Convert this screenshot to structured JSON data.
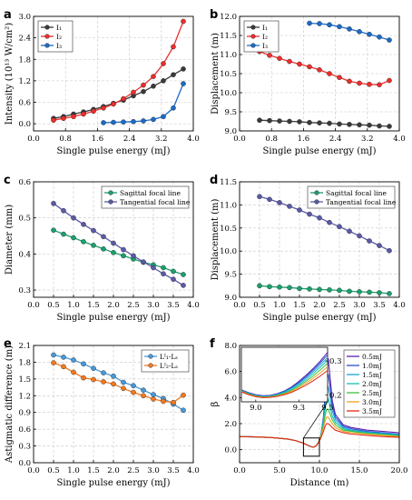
{
  "chart_data": [
    {
      "panel": "a",
      "type": "line",
      "xlabel": "Single pulse energy (mJ)",
      "ylabel": "Intensity (10¹³ W/cm²)",
      "xlim": [
        0,
        4
      ],
      "ylim": [
        -0.2,
        3.0
      ],
      "xticks": [
        0.0,
        0.8,
        1.6,
        2.4,
        3.2,
        4.0
      ],
      "yticks": [
        0.0,
        0.6,
        1.2,
        1.8,
        2.4,
        3.0
      ],
      "yfmt": 1,
      "grid": true,
      "legend": "top-left",
      "series": [
        {
          "name": "I₁",
          "color": "#3a3a3a",
          "x": [
            0.5,
            0.75,
            1.0,
            1.25,
            1.5,
            1.75,
            2.0,
            2.25,
            2.5,
            2.75,
            3.0,
            3.25,
            3.5,
            3.75
          ],
          "y": [
            0.15,
            0.2,
            0.27,
            0.33,
            0.4,
            0.48,
            0.57,
            0.66,
            0.78,
            0.9,
            1.05,
            1.2,
            1.37,
            1.53
          ]
        },
        {
          "name": "I₂",
          "color": "#e8302e",
          "x": [
            0.5,
            0.75,
            1.0,
            1.25,
            1.5,
            1.75,
            2.0,
            2.25,
            2.5,
            2.75,
            3.0,
            3.25,
            3.5,
            3.75
          ],
          "y": [
            0.1,
            0.15,
            0.2,
            0.27,
            0.35,
            0.44,
            0.55,
            0.7,
            0.88,
            1.08,
            1.32,
            1.68,
            2.15,
            2.86
          ]
        },
        {
          "name": "I₃",
          "color": "#1e6bc4",
          "x": [
            1.75,
            2.0,
            2.25,
            2.5,
            2.75,
            3.0,
            3.25,
            3.5,
            3.75
          ],
          "y": [
            0.03,
            0.04,
            0.05,
            0.06,
            0.08,
            0.12,
            0.2,
            0.44,
            1.12
          ]
        }
      ]
    },
    {
      "panel": "b",
      "type": "line",
      "xlabel": "Single pulse energy (mJ)",
      "ylabel": "Displacement (m)",
      "xlim": [
        0,
        4
      ],
      "ylim": [
        9.0,
        12.0
      ],
      "xticks": [
        0.0,
        0.8,
        1.6,
        2.4,
        3.2,
        4.0
      ],
      "yticks": [
        9.0,
        9.5,
        10.0,
        10.5,
        11.0,
        11.5,
        12.0
      ],
      "yfmt": 1,
      "grid": true,
      "legend": "top-left",
      "series": [
        {
          "name": "I₁",
          "color": "#3a3a3a",
          "x": [
            0.5,
            0.75,
            1.0,
            1.25,
            1.5,
            1.75,
            2.0,
            2.25,
            2.5,
            2.75,
            3.0,
            3.25,
            3.5,
            3.75
          ],
          "y": [
            9.28,
            9.27,
            9.26,
            9.25,
            9.24,
            9.22,
            9.21,
            9.2,
            9.18,
            9.17,
            9.16,
            9.15,
            9.13,
            9.12
          ]
        },
        {
          "name": "I₂",
          "color": "#e8302e",
          "x": [
            0.5,
            0.75,
            1.0,
            1.25,
            1.5,
            1.75,
            2.0,
            2.25,
            2.5,
            2.75,
            3.0,
            3.25,
            3.5,
            3.75
          ],
          "y": [
            11.08,
            10.98,
            10.9,
            10.82,
            10.75,
            10.68,
            10.6,
            10.5,
            10.4,
            10.3,
            10.25,
            10.22,
            10.21,
            10.32
          ]
        },
        {
          "name": "I₃",
          "color": "#1e6bc4",
          "x": [
            1.75,
            2.0,
            2.25,
            2.5,
            2.75,
            3.0,
            3.25,
            3.5,
            3.75
          ],
          "y": [
            11.82,
            11.81,
            11.78,
            11.73,
            11.67,
            11.6,
            11.53,
            11.46,
            11.38
          ]
        }
      ]
    },
    {
      "panel": "c",
      "type": "line",
      "xlabel": "Single pulse energy (mJ)",
      "ylabel": "Diameter (mm)",
      "xlim": [
        0,
        4
      ],
      "ylim": [
        0.28,
        0.6
      ],
      "xticks": [
        0.0,
        0.5,
        1.0,
        1.5,
        2.0,
        2.5,
        3.0,
        3.5,
        4.0
      ],
      "yticks": [
        0.3,
        0.4,
        0.5,
        0.6
      ],
      "xfmt": 1,
      "yfmt": 1,
      "grid": true,
      "legend": "top-right",
      "series": [
        {
          "name": "Sagittal focal line",
          "color": "#1e9e6e",
          "x": [
            0.5,
            0.75,
            1.0,
            1.25,
            1.5,
            1.75,
            2.0,
            2.25,
            2.5,
            2.75,
            3.0,
            3.25,
            3.5,
            3.75
          ],
          "y": [
            0.466,
            0.455,
            0.445,
            0.434,
            0.424,
            0.414,
            0.404,
            0.395,
            0.386,
            0.377,
            0.37,
            0.362,
            0.352,
            0.343
          ]
        },
        {
          "name": "Tangential focal line",
          "color": "#5b5aa6",
          "x": [
            0.5,
            0.75,
            1.0,
            1.25,
            1.5,
            1.75,
            2.0,
            2.25,
            2.5,
            2.75,
            3.0,
            3.25,
            3.5,
            3.75
          ],
          "y": [
            0.54,
            0.52,
            0.5,
            0.482,
            0.465,
            0.448,
            0.43,
            0.412,
            0.395,
            0.378,
            0.362,
            0.345,
            0.33,
            0.313
          ]
        }
      ]
    },
    {
      "panel": "d",
      "type": "line",
      "xlabel": "Single pulse energy (mJ)",
      "ylabel": "Displacement (m)",
      "xlim": [
        0,
        4
      ],
      "ylim": [
        9.0,
        11.5
      ],
      "xticks": [
        0.0,
        0.5,
        1.0,
        1.5,
        2.0,
        2.5,
        3.0,
        3.5,
        4.0
      ],
      "yticks": [
        9.0,
        9.5,
        10.0,
        10.5,
        11.0,
        11.5
      ],
      "xfmt": 1,
      "yfmt": 1,
      "grid": true,
      "legend": "top-right",
      "series": [
        {
          "name": "Sagittal focal line",
          "color": "#1e9e6e",
          "x": [
            0.5,
            0.75,
            1.0,
            1.25,
            1.5,
            1.75,
            2.0,
            2.25,
            2.5,
            2.75,
            3.0,
            3.25,
            3.5,
            3.75
          ],
          "y": [
            9.25,
            9.23,
            9.22,
            9.21,
            9.19,
            9.18,
            9.17,
            9.16,
            9.15,
            9.13,
            9.12,
            9.11,
            9.1,
            9.08
          ]
        },
        {
          "name": "Tangential focal line",
          "color": "#5b5aa6",
          "x": [
            0.5,
            0.75,
            1.0,
            1.25,
            1.5,
            1.75,
            2.0,
            2.25,
            2.5,
            2.75,
            3.0,
            3.25,
            3.5,
            3.75
          ],
          "y": [
            11.18,
            11.12,
            11.05,
            10.97,
            10.89,
            10.8,
            10.72,
            10.62,
            10.53,
            10.43,
            10.33,
            10.22,
            10.12,
            10.01
          ]
        }
      ]
    },
    {
      "panel": "e",
      "type": "line",
      "xlabel": "Single pulse energy (mJ)",
      "ylabel": "Astigmatic difference (m)",
      "xlim": [
        0,
        4
      ],
      "ylim": [
        0.0,
        2.1
      ],
      "xticks": [
        0.0,
        0.5,
        1.0,
        1.5,
        2.0,
        2.5,
        3.0,
        3.5,
        4.0
      ],
      "yticks": [
        0.0,
        0.3,
        0.6,
        0.9,
        1.2,
        1.5,
        1.8,
        2.1
      ],
      "xfmt": 1,
      "yfmt": 1,
      "grid": true,
      "legend": "top-right",
      "series": [
        {
          "name": "Lᴵ₁-Lₛ",
          "color": "#4a98d6",
          "x": [
            0.5,
            0.75,
            1.0,
            1.25,
            1.5,
            1.75,
            2.0,
            2.25,
            2.5,
            2.75,
            3.0,
            3.25,
            3.5,
            3.75
          ],
          "y": [
            1.93,
            1.89,
            1.84,
            1.77,
            1.69,
            1.61,
            1.55,
            1.44,
            1.38,
            1.3,
            1.22,
            1.15,
            1.05,
            0.94
          ]
        },
        {
          "name": "Lᴵ₂-Lₛ",
          "color": "#f07a22",
          "x": [
            0.5,
            0.75,
            1.0,
            1.25,
            1.5,
            1.75,
            2.0,
            2.25,
            2.5,
            2.75,
            3.0,
            3.25,
            3.5,
            3.75
          ],
          "y": [
            1.79,
            1.72,
            1.62,
            1.52,
            1.49,
            1.45,
            1.41,
            1.33,
            1.26,
            1.2,
            1.14,
            1.1,
            1.08,
            1.21
          ]
        }
      ]
    },
    {
      "panel": "f",
      "type": "line",
      "xlabel": "Distance (m)",
      "ylabel": "β",
      "xlim": [
        0,
        20
      ],
      "ylim": [
        -1.0,
        8.0
      ],
      "xticks": [
        0.0,
        5.0,
        10.0,
        15.0,
        20.0
      ],
      "yticks": [
        0.0,
        2.0,
        4.0,
        6.0,
        8.0
      ],
      "xfmt": 1,
      "yfmt": 1,
      "grid": true,
      "legend": "top-right",
      "series": [
        {
          "name": "0.5mJ",
          "color": "#5a1fb0",
          "x": [
            0,
            2,
            4,
            6,
            7,
            8,
            8.5,
            9,
            9.3,
            9.6,
            9.9,
            10.2,
            10.5,
            10.7,
            10.9,
            11.1,
            11.3,
            11.6,
            12,
            13,
            14,
            16,
            18,
            20
          ],
          "y": [
            1.0,
            0.98,
            0.93,
            0.82,
            0.7,
            0.5,
            0.35,
            0.22,
            0.2,
            0.3,
            0.6,
            1.2,
            2.5,
            4.2,
            6.2,
            7.0,
            5.8,
            3.8,
            2.7,
            1.9,
            1.7,
            1.5,
            1.4,
            1.3
          ]
        },
        {
          "name": "1.0mJ",
          "color": "#2a4fd0",
          "x": [
            0,
            2,
            4,
            6,
            7,
            8,
            8.5,
            9,
            9.3,
            9.6,
            9.9,
            10.2,
            10.5,
            10.7,
            10.9,
            11.1,
            11.3,
            11.6,
            12,
            13,
            14,
            16,
            18,
            20
          ],
          "y": [
            1.0,
            0.98,
            0.93,
            0.82,
            0.7,
            0.5,
            0.35,
            0.22,
            0.2,
            0.3,
            0.6,
            1.2,
            2.4,
            3.9,
            5.3,
            5.8,
            5.0,
            3.4,
            2.5,
            1.8,
            1.6,
            1.4,
            1.3,
            1.2
          ]
        },
        {
          "name": "1.5mJ",
          "color": "#1aa0d8",
          "x": [
            0,
            2,
            4,
            6,
            7,
            8,
            8.5,
            9,
            9.3,
            9.6,
            9.9,
            10.2,
            10.5,
            10.7,
            10.9,
            11.1,
            11.3,
            11.6,
            12,
            13,
            14,
            16,
            18,
            20
          ],
          "y": [
            1.0,
            0.98,
            0.93,
            0.82,
            0.7,
            0.5,
            0.35,
            0.22,
            0.2,
            0.3,
            0.6,
            1.2,
            2.3,
            3.5,
            4.5,
            4.8,
            4.2,
            3.0,
            2.3,
            1.7,
            1.5,
            1.35,
            1.25,
            1.15
          ]
        },
        {
          "name": "2.0mJ",
          "color": "#18c0b0",
          "x": [
            0,
            2,
            4,
            6,
            7,
            8,
            8.5,
            9,
            9.3,
            9.6,
            9.9,
            10.2,
            10.5,
            10.7,
            10.9,
            11.1,
            11.3,
            11.6,
            12,
            13,
            14,
            16,
            18,
            20
          ],
          "y": [
            1.0,
            0.98,
            0.93,
            0.82,
            0.7,
            0.5,
            0.35,
            0.22,
            0.2,
            0.3,
            0.6,
            1.15,
            2.1,
            3.1,
            3.8,
            3.9,
            3.4,
            2.6,
            2.1,
            1.6,
            1.45,
            1.3,
            1.2,
            1.1
          ]
        },
        {
          "name": "2.5mJ",
          "color": "#40c040",
          "x": [
            0,
            2,
            4,
            6,
            7,
            8,
            8.5,
            9,
            9.3,
            9.6,
            9.9,
            10.2,
            10.5,
            10.7,
            10.9,
            11.1,
            11.3,
            11.6,
            12,
            13,
            14,
            16,
            18,
            20
          ],
          "y": [
            1.0,
            0.98,
            0.93,
            0.82,
            0.7,
            0.5,
            0.35,
            0.22,
            0.2,
            0.3,
            0.6,
            1.1,
            1.9,
            2.6,
            3.1,
            3.1,
            2.8,
            2.3,
            1.9,
            1.5,
            1.4,
            1.25,
            1.15,
            1.05
          ]
        },
        {
          "name": "3.0mJ",
          "color": "#f0a020",
          "x": [
            0,
            2,
            4,
            6,
            7,
            8,
            8.5,
            9,
            9.3,
            9.6,
            9.9,
            10.2,
            10.5,
            10.7,
            10.9,
            11.1,
            11.3,
            11.6,
            12,
            13,
            14,
            16,
            18,
            20
          ],
          "y": [
            1.0,
            0.98,
            0.93,
            0.82,
            0.7,
            0.5,
            0.35,
            0.22,
            0.2,
            0.3,
            0.6,
            1.05,
            1.7,
            2.2,
            2.5,
            2.5,
            2.3,
            2.0,
            1.7,
            1.4,
            1.3,
            1.2,
            1.1,
            1.0
          ]
        },
        {
          "name": "3.5mJ",
          "color": "#e02818",
          "x": [
            0,
            2,
            4,
            6,
            7,
            8,
            8.5,
            9,
            9.3,
            9.6,
            9.9,
            10.2,
            10.5,
            10.7,
            10.9,
            11.1,
            11.3,
            11.6,
            12,
            13,
            14,
            16,
            18,
            20
          ],
          "y": [
            1.0,
            0.98,
            0.93,
            0.82,
            0.7,
            0.5,
            0.35,
            0.22,
            0.2,
            0.3,
            0.55,
            0.95,
            1.4,
            1.8,
            2.0,
            2.0,
            1.9,
            1.7,
            1.5,
            1.3,
            1.2,
            1.1,
            1.0,
            0.95
          ]
        }
      ],
      "inset": {
        "xlim": [
          8.9,
          9.5
        ],
        "ylim": [
          0.18,
          0.34
        ],
        "xticks": [
          9.0,
          9.3,
          9.5
        ],
        "yticks": [
          0.2,
          0.3
        ],
        "xfmt": 1,
        "yfmt": 1,
        "x": [
          8.9,
          8.95,
          9.0,
          9.05,
          9.1,
          9.15,
          9.2,
          9.25,
          9.3,
          9.35,
          9.4,
          9.45,
          9.5
        ],
        "y_by_series": [
          [
            0.215,
            0.207,
            0.201,
            0.198,
            0.199,
            0.204,
            0.212,
            0.224,
            0.24,
            0.258,
            0.278,
            0.3,
            0.325
          ],
          [
            0.214,
            0.206,
            0.2,
            0.197,
            0.198,
            0.203,
            0.211,
            0.222,
            0.237,
            0.254,
            0.274,
            0.295,
            0.318
          ],
          [
            0.213,
            0.205,
            0.199,
            0.196,
            0.197,
            0.202,
            0.209,
            0.22,
            0.234,
            0.25,
            0.269,
            0.289,
            0.31
          ],
          [
            0.212,
            0.204,
            0.198,
            0.195,
            0.196,
            0.2,
            0.207,
            0.217,
            0.23,
            0.245,
            0.263,
            0.282,
            0.302
          ],
          [
            0.211,
            0.203,
            0.197,
            0.194,
            0.195,
            0.199,
            0.205,
            0.214,
            0.226,
            0.24,
            0.256,
            0.274,
            0.293
          ],
          [
            0.21,
            0.202,
            0.196,
            0.193,
            0.194,
            0.197,
            0.203,
            0.211,
            0.222,
            0.235,
            0.249,
            0.265,
            0.283
          ],
          [
            0.209,
            0.201,
            0.195,
            0.192,
            0.193,
            0.196,
            0.201,
            0.208,
            0.218,
            0.229,
            0.242,
            0.256,
            0.272
          ]
        ]
      }
    }
  ]
}
